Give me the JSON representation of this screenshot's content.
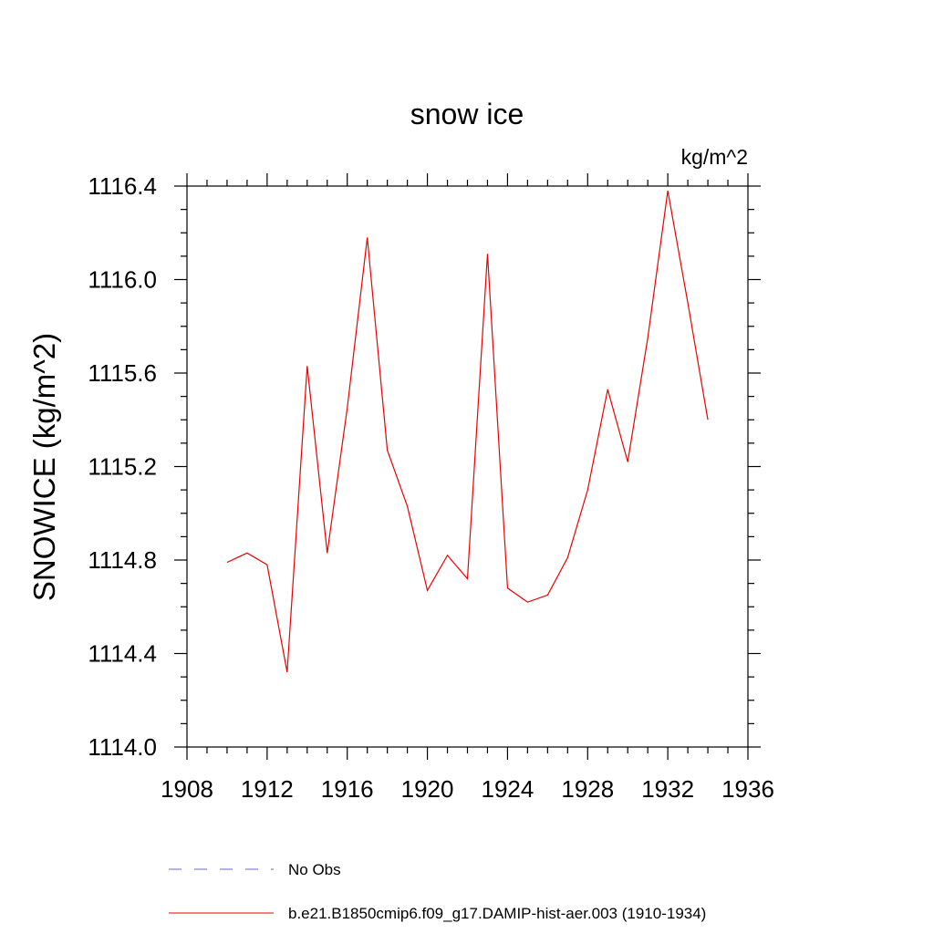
{
  "chart_data": {
    "type": "line",
    "title": "snow ice",
    "units_label": "kg/m^2",
    "ylabel": "SNOWICE  (kg/m^2)",
    "xlabel": "",
    "xlim": [
      1908,
      1936
    ],
    "ylim": [
      1114.0,
      1116.4
    ],
    "x_ticks": [
      "1908",
      "1912",
      "1916",
      "1920",
      "1924",
      "1928",
      "1932",
      "1936"
    ],
    "y_ticks": [
      "1114.0",
      "1114.4",
      "1114.8",
      "1115.2",
      "1115.6",
      "1116.0",
      "1116.4"
    ],
    "grid": false,
    "legend_position": "bottom",
    "legend": [
      {
        "label": "No Obs",
        "color": "#6666cc",
        "style": "dashed"
      },
      {
        "label": "b.e21.B1850cmip6.f09_g17.DAMIP-hist-aer.003 (1910-1934)",
        "color": "#ee0000",
        "style": "solid"
      }
    ],
    "series": [
      {
        "name": "b.e21.B1850cmip6.f09_g17.DAMIP-hist-aer.003 (1910-1934)",
        "color": "#ee0000",
        "x": [
          1910,
          1911,
          1912,
          1913,
          1914,
          1915,
          1916,
          1917,
          1918,
          1919,
          1920,
          1921,
          1922,
          1923,
          1924,
          1925,
          1926,
          1927,
          1928,
          1929,
          1930,
          1931,
          1932,
          1933,
          1934
        ],
        "values": [
          1114.79,
          1114.83,
          1114.78,
          1114.32,
          1115.63,
          1114.83,
          1115.45,
          1116.18,
          1115.27,
          1115.03,
          1114.67,
          1114.82,
          1114.72,
          1116.11,
          1114.68,
          1114.62,
          1114.65,
          1114.81,
          1115.1,
          1115.53,
          1115.22,
          1115.75,
          1116.38,
          1115.9,
          1115.4
        ]
      }
    ]
  }
}
